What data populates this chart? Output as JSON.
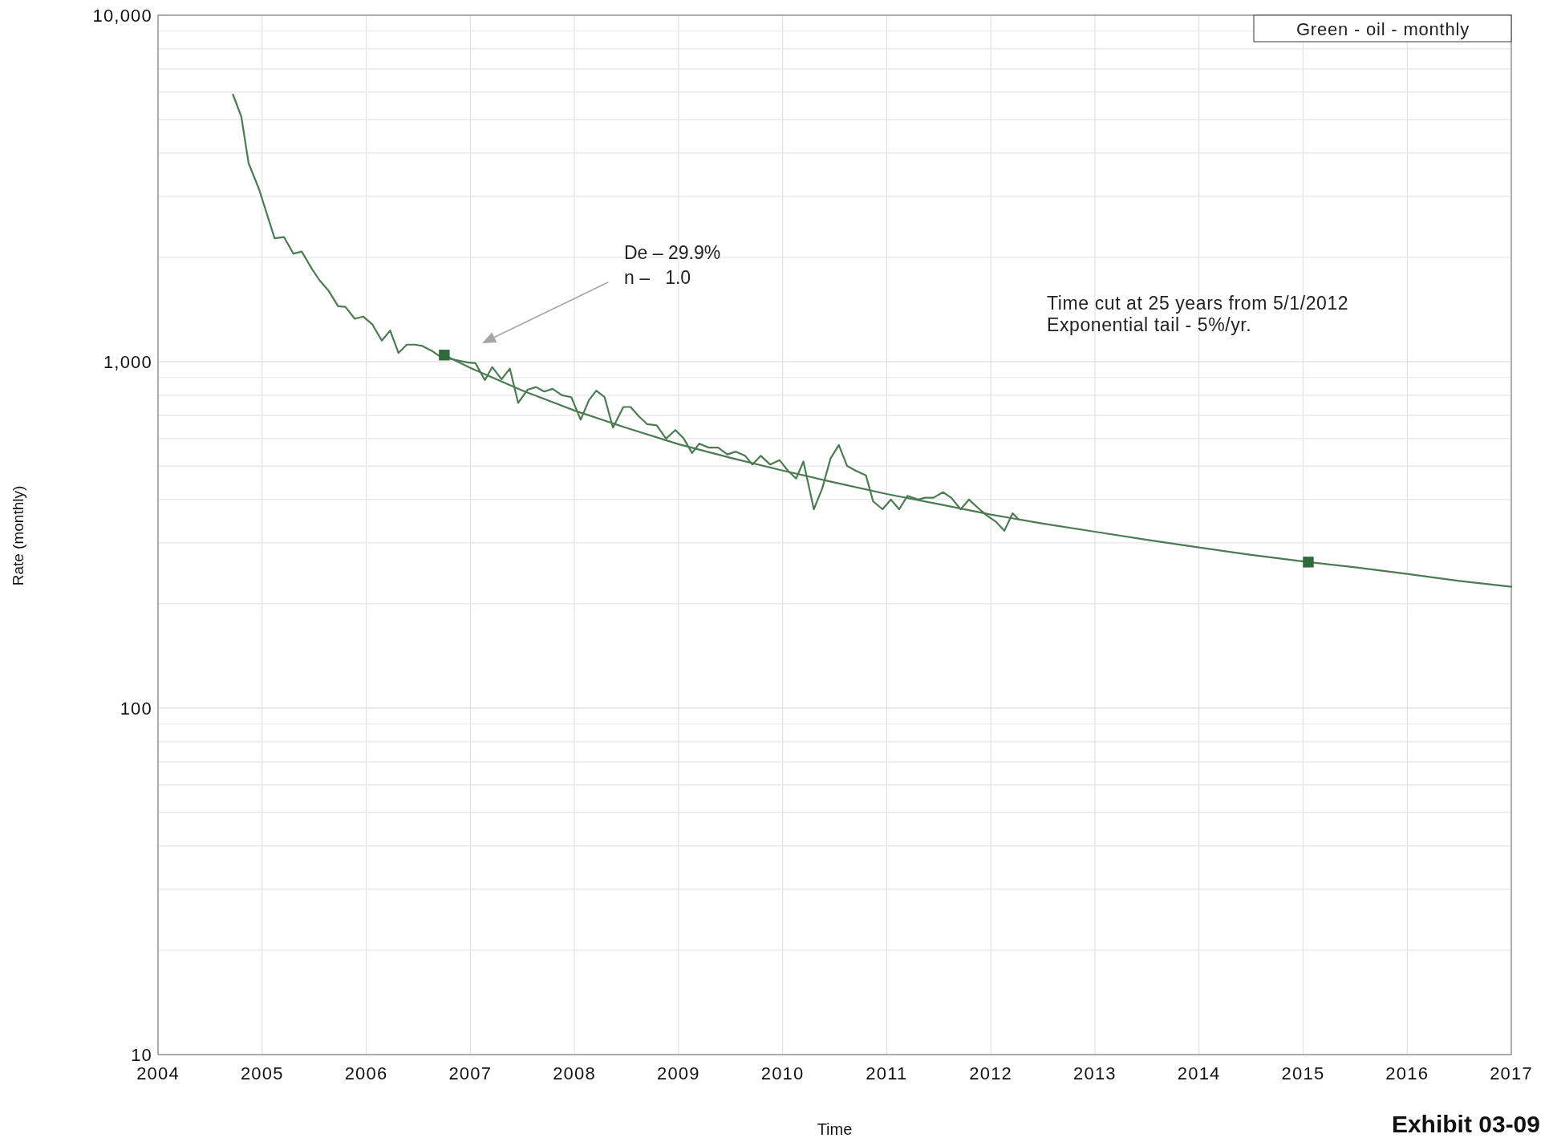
{
  "chart_data": {
    "type": "line",
    "xlabel": "Time",
    "ylabel": "Rate (monthly)",
    "xlim": [
      2004,
      2017
    ],
    "xticks": [
      2004,
      2005,
      2006,
      2007,
      2008,
      2009,
      2010,
      2011,
      2012,
      2013,
      2014,
      2015,
      2016,
      2017
    ],
    "ylim": [
      10,
      10000
    ],
    "log": true,
    "grid": true,
    "yticks": [
      10,
      {
        "value": 20,
        "label": null
      },
      {
        "value": 30,
        "label": null
      },
      {
        "value": 40,
        "label": null
      },
      {
        "value": 50,
        "label": null
      },
      {
        "value": 60,
        "label": null
      },
      {
        "value": 70,
        "label": null
      },
      {
        "value": 80,
        "label": null
      },
      {
        "value": 90,
        "label": null
      },
      100,
      {
        "value": 200,
        "label": null
      },
      {
        "value": 300,
        "label": null
      },
      {
        "value": 400,
        "label": null
      },
      {
        "value": 500,
        "label": null
      },
      {
        "value": 600,
        "label": null
      },
      {
        "value": 700,
        "label": null
      },
      {
        "value": 800,
        "label": null
      },
      {
        "value": 900,
        "label": null
      },
      {
        "value": 1000,
        "label": "1,000"
      },
      {
        "value": 2000,
        "label": null
      },
      {
        "value": 3000,
        "label": null
      },
      {
        "value": 4000,
        "label": null
      },
      {
        "value": 5000,
        "label": null
      },
      {
        "value": 6000,
        "label": null
      },
      {
        "value": 7000,
        "label": null
      },
      {
        "value": 8000,
        "label": null
      },
      {
        "value": 9000,
        "label": null
      },
      {
        "value": 10000,
        "label": "10,000"
      }
    ],
    "series": [
      {
        "color": "#4b7b50",
        "x": [
          2004.72,
          2004.8,
          2004.87,
          2004.97,
          2005.12,
          2005.21,
          2005.3,
          2005.38,
          2005.48,
          2005.55,
          2005.64,
          2005.73,
          2005.8,
          2005.89,
          2005.97,
          2006.06,
          2006.15,
          2006.23,
          2006.31,
          2006.39,
          2006.47,
          2006.54,
          2006.63,
          2006.71,
          2006.8,
          2006.97,
          2007.05,
          2007.14,
          2007.21,
          2007.3,
          2007.38,
          2007.46,
          2007.55,
          2007.63,
          2007.71,
          2007.79,
          2007.88,
          2007.97,
          2008.06,
          2008.14,
          2008.21,
          2008.29,
          2008.37,
          2008.47,
          2008.54,
          2008.62,
          2008.7,
          2008.79,
          2008.88,
          2008.97,
          2009.05,
          2009.13,
          2009.2,
          2009.29,
          2009.38,
          2009.47,
          2009.55,
          2009.64,
          2009.71,
          2009.79,
          2009.88,
          2009.97,
          2010.05,
          2010.13,
          2010.2,
          2010.3,
          2010.38,
          2010.46,
          2010.54,
          2010.62,
          2010.7,
          2010.8,
          2010.87,
          2010.96,
          2011.04,
          2011.12,
          2011.2,
          2011.3,
          2011.37,
          2011.45,
          2011.54,
          2011.62,
          2011.71,
          2011.79,
          2011.87,
          2011.96,
          2012.05,
          2012.13,
          2012.21,
          2012.27
        ],
        "values": [
          5900,
          5100,
          3740,
          3150,
          2270,
          2290,
          2050,
          2080,
          1850,
          1720,
          1600,
          1445,
          1440,
          1330,
          1350,
          1280,
          1150,
          1230,
          1060,
          1120,
          1120,
          1110,
          1075,
          1035,
          1020,
          995,
          990,
          885,
          965,
          890,
          955,
          760,
          830,
          845,
          820,
          835,
          800,
          790,
          680,
          775,
          825,
          790,
          645,
          740,
          740,
          695,
          660,
          655,
          600,
          635,
          600,
          545,
          580,
          565,
          565,
          540,
          550,
          535,
          505,
          535,
          505,
          520,
          485,
          460,
          515,
          375,
          430,
          525,
          575,
          500,
          485,
          470,
          395,
          375,
          400,
          375,
          410,
          400,
          405,
          405,
          420,
          405,
          375,
          400,
          380,
          360,
          345,
          325,
          365,
          350
        ]
      },
      {
        "color": "#4b7b50",
        "x": [
          2006.75,
          2007,
          2007.5,
          2008,
          2008.5,
          2009,
          2009.5,
          2010,
          2010.5,
          2011,
          2011.5,
          2012,
          2012.5,
          2013,
          2013.5,
          2014,
          2014.5,
          2015.05,
          2015.5,
          2016,
          2016.5,
          2017
        ],
        "values": [
          1045,
          960,
          825,
          723,
          644,
          578,
          528,
          485,
          448,
          415,
          388,
          362,
          341,
          323,
          306,
          291,
          277,
          264,
          255,
          244,
          233,
          224
        ]
      },
      {
        "type": "scatter",
        "marker": "square",
        "color": "#2e6a3b",
        "x": [
          2006.75,
          2015.05
        ],
        "values": [
          1045,
          264
        ]
      }
    ],
    "annotations": [
      "Green - oil - monthly",
      "De – 29.9%\nn –   1.0",
      "Time cut at 25 years from 5/1/2012\nExponential tail - 5%/yr.",
      "Exhibit 03-09"
    ]
  }
}
